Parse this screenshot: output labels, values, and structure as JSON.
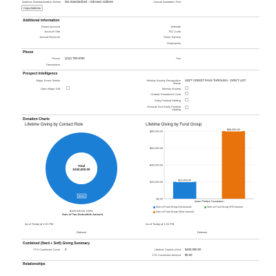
{
  "top": {
    "address_std_label": "Address Standardization Status",
    "address_std_value": "Not Standardized - Unknown Address",
    "casual_salutation_label": "Casual Salutation Text",
    "copy_address_button": "Copy Address"
  },
  "additional": {
    "title": "Additional Information",
    "left": [
      {
        "label": "Parent Account",
        "value": ""
      },
      {
        "label": "Account Site",
        "value": ""
      },
      {
        "label": "Annual Revenue",
        "value": ""
      }
    ],
    "right": [
      {
        "label": "Website",
        "value": ""
      },
      {
        "label": "SIC Code",
        "value": ""
      },
      {
        "label": "Ticker Symbol",
        "value": ""
      },
      {
        "label": "Employees",
        "value": ""
      }
    ]
  },
  "phone": {
    "title": "Phone",
    "phone_label": "Phone",
    "phone_value": "(212) 750-9790",
    "fax_label": "Fax",
    "description_label": "Description"
  },
  "prospect": {
    "title": "Prospect Intelligence",
    "major_donor_label": "Major Donor Status",
    "open_major_gift_label": "Open Major Gift",
    "mrec_label_1": "Weekly Society Recognition",
    "mrec_label_2": "Name",
    "mrec_value": "SOFT CREDIT PASS THROUGH - DON'T LIST",
    "weekly_society_label": "Weekly Society",
    "charter_club_label": "Charter President's Club",
    "early_festival_label": "Early Festival Mailing",
    "exclude_label_1": "Exclude from Early Festival",
    "exclude_label_2": "Mailing"
  },
  "charts_section": {
    "title": "Donation Charts",
    "as_of": "As of Today at 1:01 PM",
    "refresh": "Refresh"
  },
  "chart_data": [
    {
      "type": "pie",
      "title": "Lifetime Giving by Contact Role",
      "center_label": "Total",
      "center_value": "$100,000.00",
      "slices": [
        {
          "name": "Donor",
          "value": 100000,
          "percent": "100%",
          "color": "#1b7fd6"
        }
      ],
      "footer_value": "$100,000.00",
      "footer_percent": "100%",
      "footer_caption": "Sum of Tax-Deductible Amount"
    },
    {
      "type": "bar",
      "title": "Lifetime Giving by Fund Group",
      "categories": [
        "Jesse Phillips Foundation"
      ],
      "series": [
        {
          "name": "Sum of Fund Group ICA Amount",
          "values": [
            20000
          ],
          "label": "$20,000.00",
          "color": "#1b7fd6"
        },
        {
          "name": "Sum of Fund Group IPR Amount",
          "values": [
            0
          ],
          "label": "",
          "color": "#4caf50"
        },
        {
          "name": "Sum of Fund Group Other Amount",
          "values": [
            80000
          ],
          "label": "$80,000.00",
          "color": "#e8720c"
        }
      ],
      "ylim": [
        0,
        80000
      ],
      "yticks": [
        0,
        20000,
        40000,
        60000,
        80000
      ],
      "ytick_labels": [
        "$0.00",
        "$20,000.00",
        "$40,000.00",
        "$60,000.00",
        "$80,000.00"
      ],
      "legend": "bottom"
    }
  ],
  "summary": {
    "title": "Combined (Hard + Soft) Giving Summary",
    "ytd_count_label": "YTD Combined Count",
    "ytd_count_value": "0",
    "lifetime_label": "Lifetime Cash/In-Kind",
    "lifetime_value": "$100,000.00",
    "ytd_amount_label": "YTD Combined Amount",
    "ytd_amount_value": "$0.00"
  },
  "relationships": {
    "title": "Relationships"
  }
}
